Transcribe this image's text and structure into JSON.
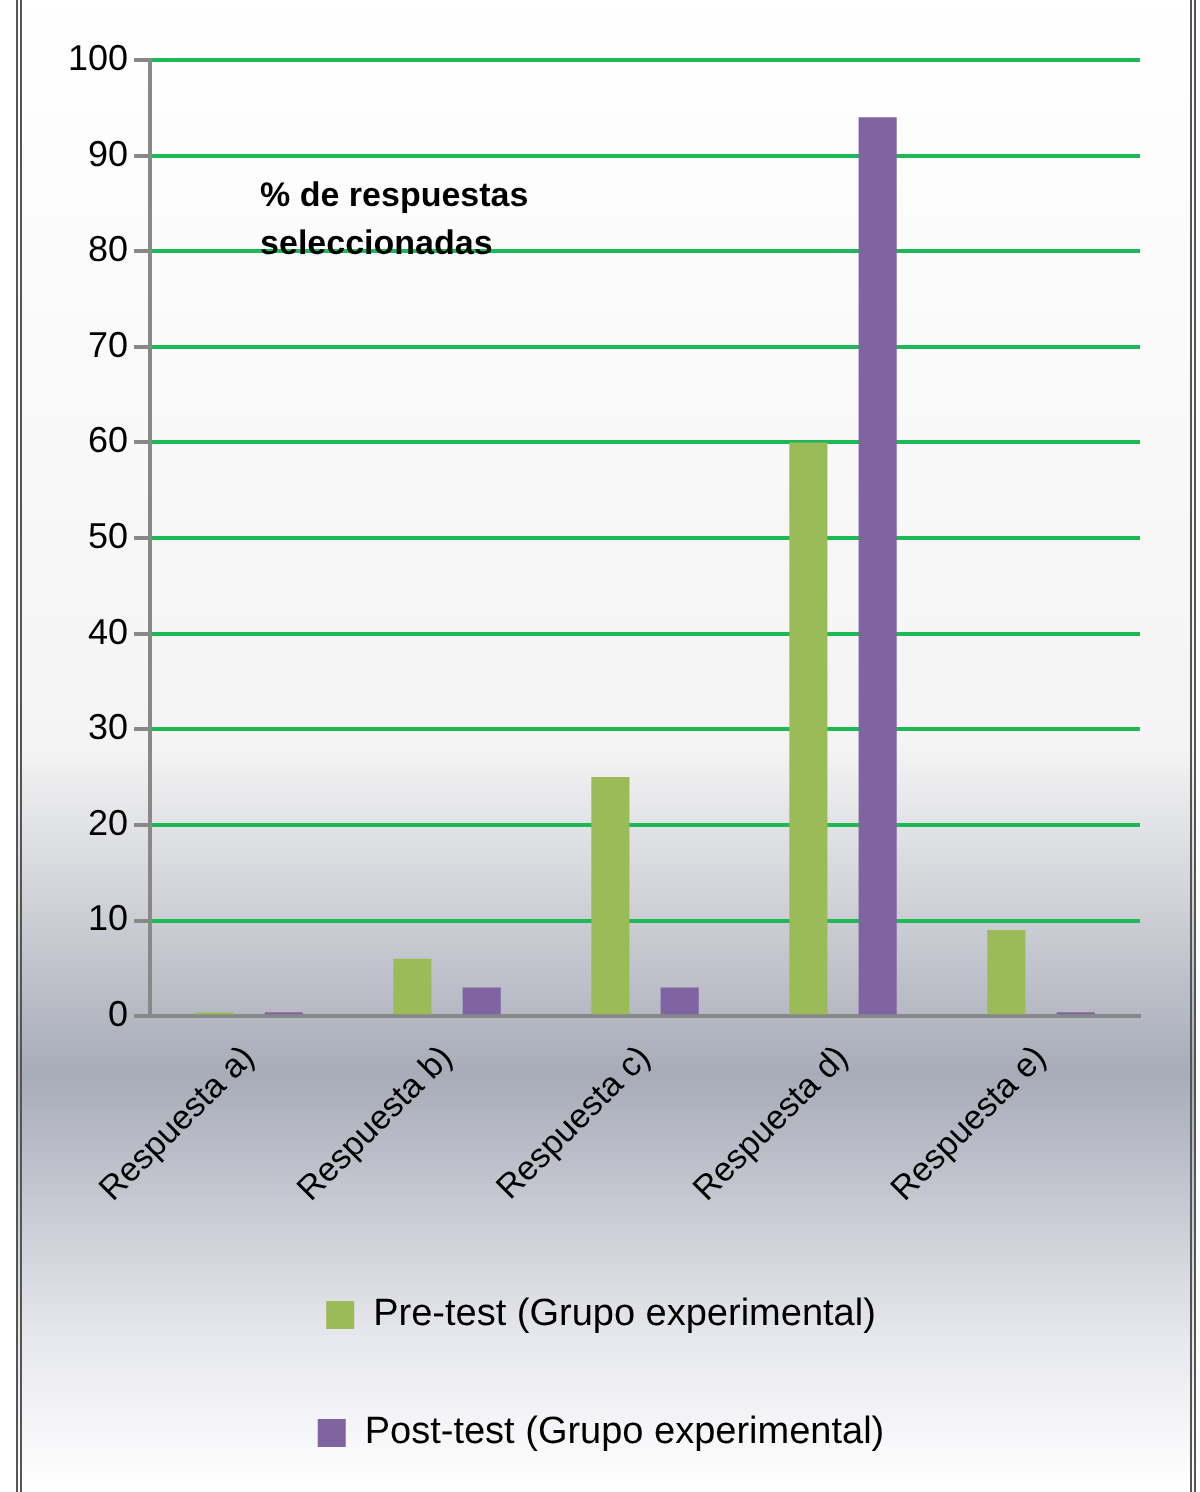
{
  "chart_data": {
    "type": "bar",
    "title": "% de respuestas seleccionadas",
    "categories": [
      "Respuesta a)",
      "Respuesta b)",
      "Respuesta c)",
      "Respuesta d)",
      "Respuesta e)"
    ],
    "series": [
      {
        "name": "Pre-test (Grupo experimental)",
        "color": "#9bbb59",
        "values": [
          0,
          6,
          25,
          60,
          9
        ]
      },
      {
        "name": "Post-test (Grupo experimental)",
        "color": "#8064a2",
        "values": [
          0,
          3,
          3,
          94,
          0
        ]
      }
    ],
    "ylim": [
      0,
      100
    ],
    "yticks": [
      0,
      10,
      20,
      30,
      40,
      50,
      60,
      70,
      80,
      90,
      100
    ],
    "grid": "y",
    "legend": "bottom"
  }
}
